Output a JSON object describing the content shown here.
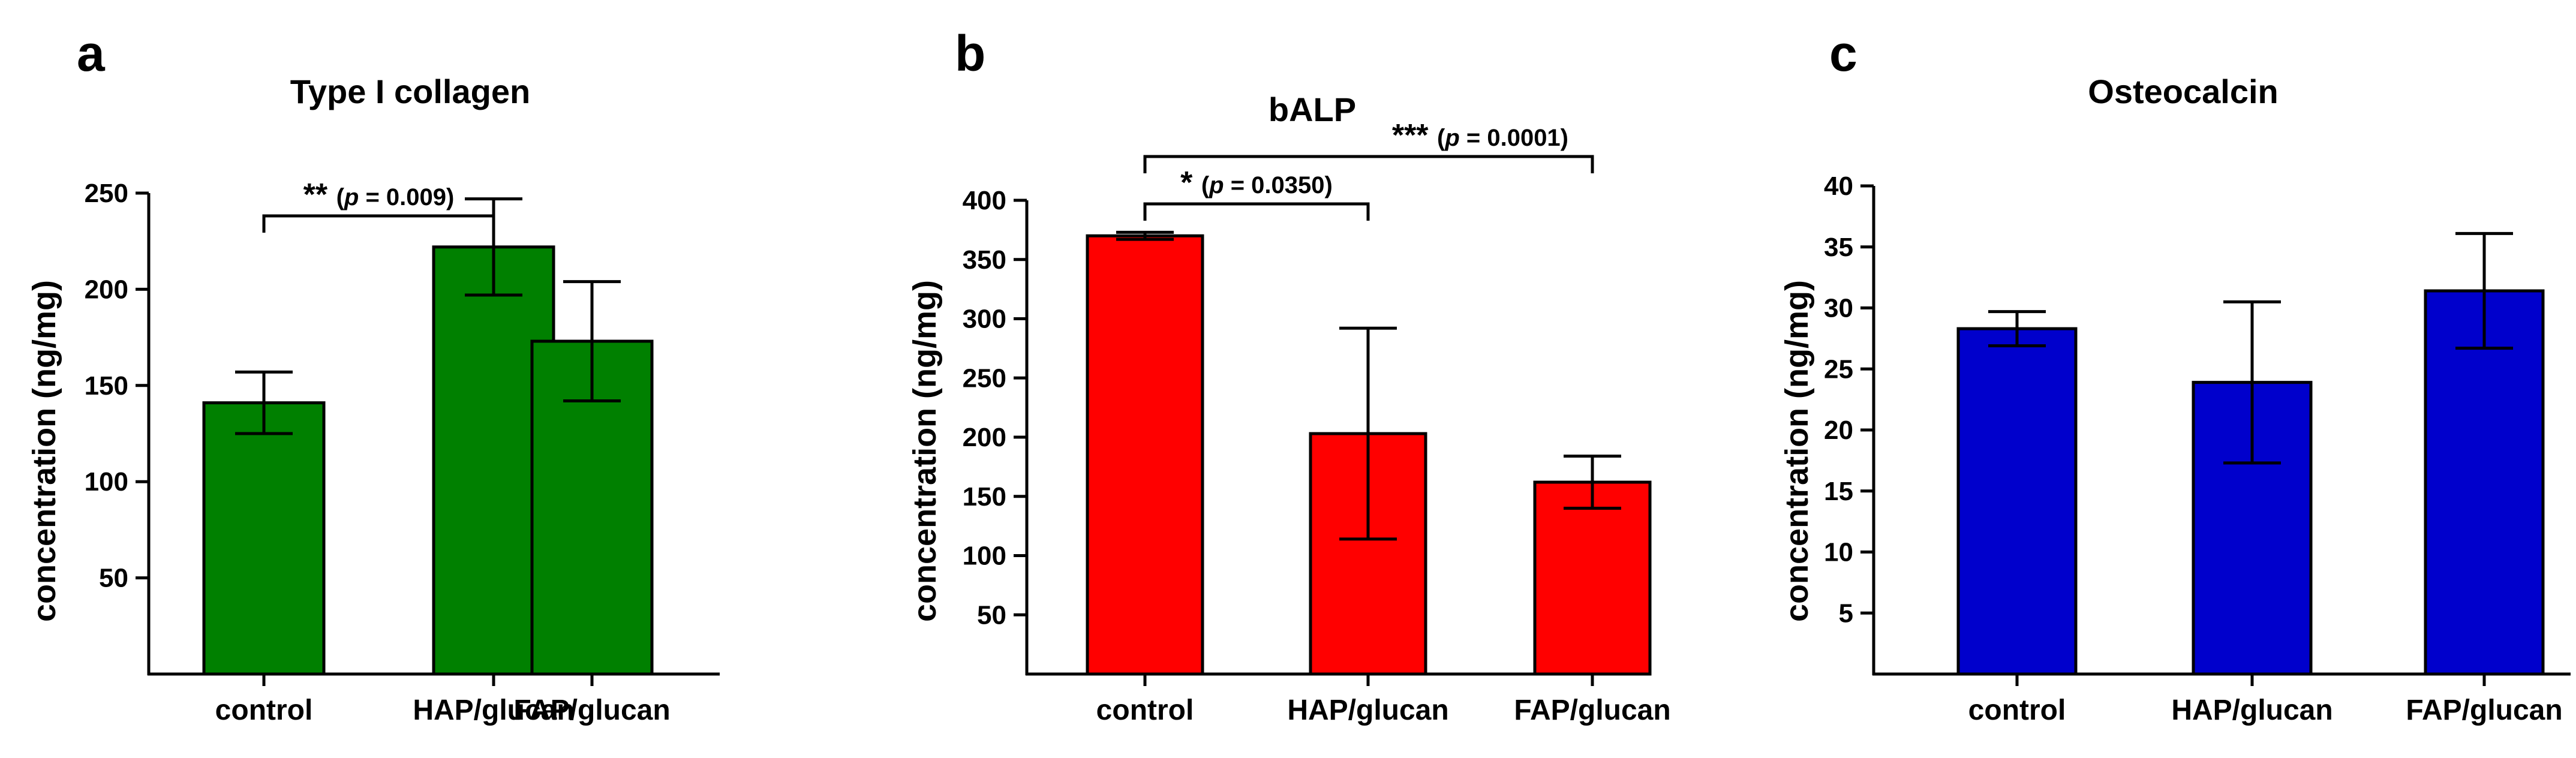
{
  "chart_data": [
    {
      "type": "bar",
      "panel": "a",
      "title": "Type I collagen",
      "xlabel": "",
      "ylabel": "concentration (ng/mg)",
      "categories": [
        "control",
        "HAP/glucan",
        "FAP/glucan"
      ],
      "values": [
        141,
        222,
        173
      ],
      "errors": [
        16,
        25,
        31
      ],
      "ylim": [
        0,
        250
      ],
      "yticks": [
        50,
        100,
        150,
        200,
        250
      ],
      "bar_color": "#008000",
      "grid": false,
      "significance": [
        {
          "from": 0,
          "to": 1,
          "stars": "**",
          "p_label": "p",
          "p_rest": " = 0.009)"
        }
      ]
    },
    {
      "type": "bar",
      "panel": "b",
      "title": "bALP",
      "xlabel": "",
      "ylabel": "concentration (ng/mg)",
      "categories": [
        "control",
        "HAP/glucan",
        "FAP/glucan"
      ],
      "values": [
        370,
        203,
        162
      ],
      "errors": [
        3,
        89,
        22
      ],
      "ylim": [
        0,
        400
      ],
      "yticks": [
        50,
        100,
        150,
        200,
        250,
        300,
        350,
        400
      ],
      "bar_color": "#ff0000",
      "grid": false,
      "significance": [
        {
          "from": 0,
          "to": 1,
          "stars": "*",
          "p_label": "p",
          "p_rest": " = 0.0350)"
        },
        {
          "from": 0,
          "to": 2,
          "stars": "***",
          "p_label": "p",
          "p_rest": " = 0.0001)"
        }
      ]
    },
    {
      "type": "bar",
      "panel": "c",
      "title": "Osteocalcin",
      "xlabel": "",
      "ylabel": "concentration (ng/mg)",
      "categories": [
        "control",
        "HAP/glucan",
        "FAP/glucan"
      ],
      "values": [
        28.3,
        23.9,
        31.4
      ],
      "errors": [
        1.4,
        6.6,
        4.7
      ],
      "ylim": [
        0,
        40
      ],
      "yticks": [
        5,
        10,
        15,
        20,
        25,
        30,
        35,
        40
      ],
      "bar_color": "#0000cc",
      "grid": false,
      "significance": []
    }
  ]
}
